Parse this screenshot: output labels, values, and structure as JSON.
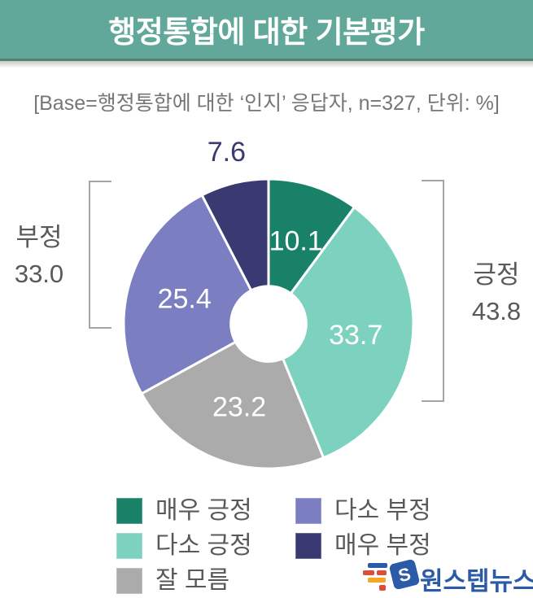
{
  "colors": {
    "banner_bg": "#62a89a",
    "banner_border": "#57806f"
  },
  "header": {
    "title": "행정통합에 대한 기본평가"
  },
  "base_note": "[Base=행정통합에 대한 ‘인지’ 응답자, n=327, 단위: %]",
  "chart_data": {
    "type": "pie",
    "title": "행정통합에 대한 기본평가",
    "unit": "%",
    "n": 327,
    "donut": true,
    "start_angle_deg": 0,
    "direction": "clockwise",
    "donut_hole_ratio": 0.26,
    "segments": [
      {
        "label": "매우 긍정",
        "value": 10.1,
        "value_text": "10.1",
        "color": "#1a8169",
        "value_label_placement": "inside"
      },
      {
        "label": "다소 긍정",
        "value": 33.7,
        "value_text": "33.7",
        "color": "#7dd2bf",
        "value_label_placement": "inside"
      },
      {
        "label": "잘 모름",
        "value": 23.2,
        "value_text": "23.2",
        "color": "#ababab",
        "value_label_placement": "inside"
      },
      {
        "label": "다소 부정",
        "value": 25.4,
        "value_text": "25.4",
        "color": "#7b7fc2",
        "value_label_placement": "inside"
      },
      {
        "label": "매우 부정",
        "value": 7.6,
        "value_text": "7.6",
        "color": "#3a3a72",
        "value_label_placement": "outside"
      }
    ],
    "groups": [
      {
        "label": "부정",
        "value": 33.0,
        "value_text": "33.0",
        "side": "left"
      },
      {
        "label": "긍정",
        "value": 43.8,
        "value_text": "43.8",
        "side": "right"
      }
    ],
    "legend_column_break": 3,
    "legend_position": "bottom"
  },
  "watermark": {
    "text": "원스텝뉴스",
    "text_color": "#2b5aa7",
    "mark_blue": "#2b5aa7",
    "mark_red": "#e04b3a",
    "mark_yellow": "#f5a623"
  }
}
